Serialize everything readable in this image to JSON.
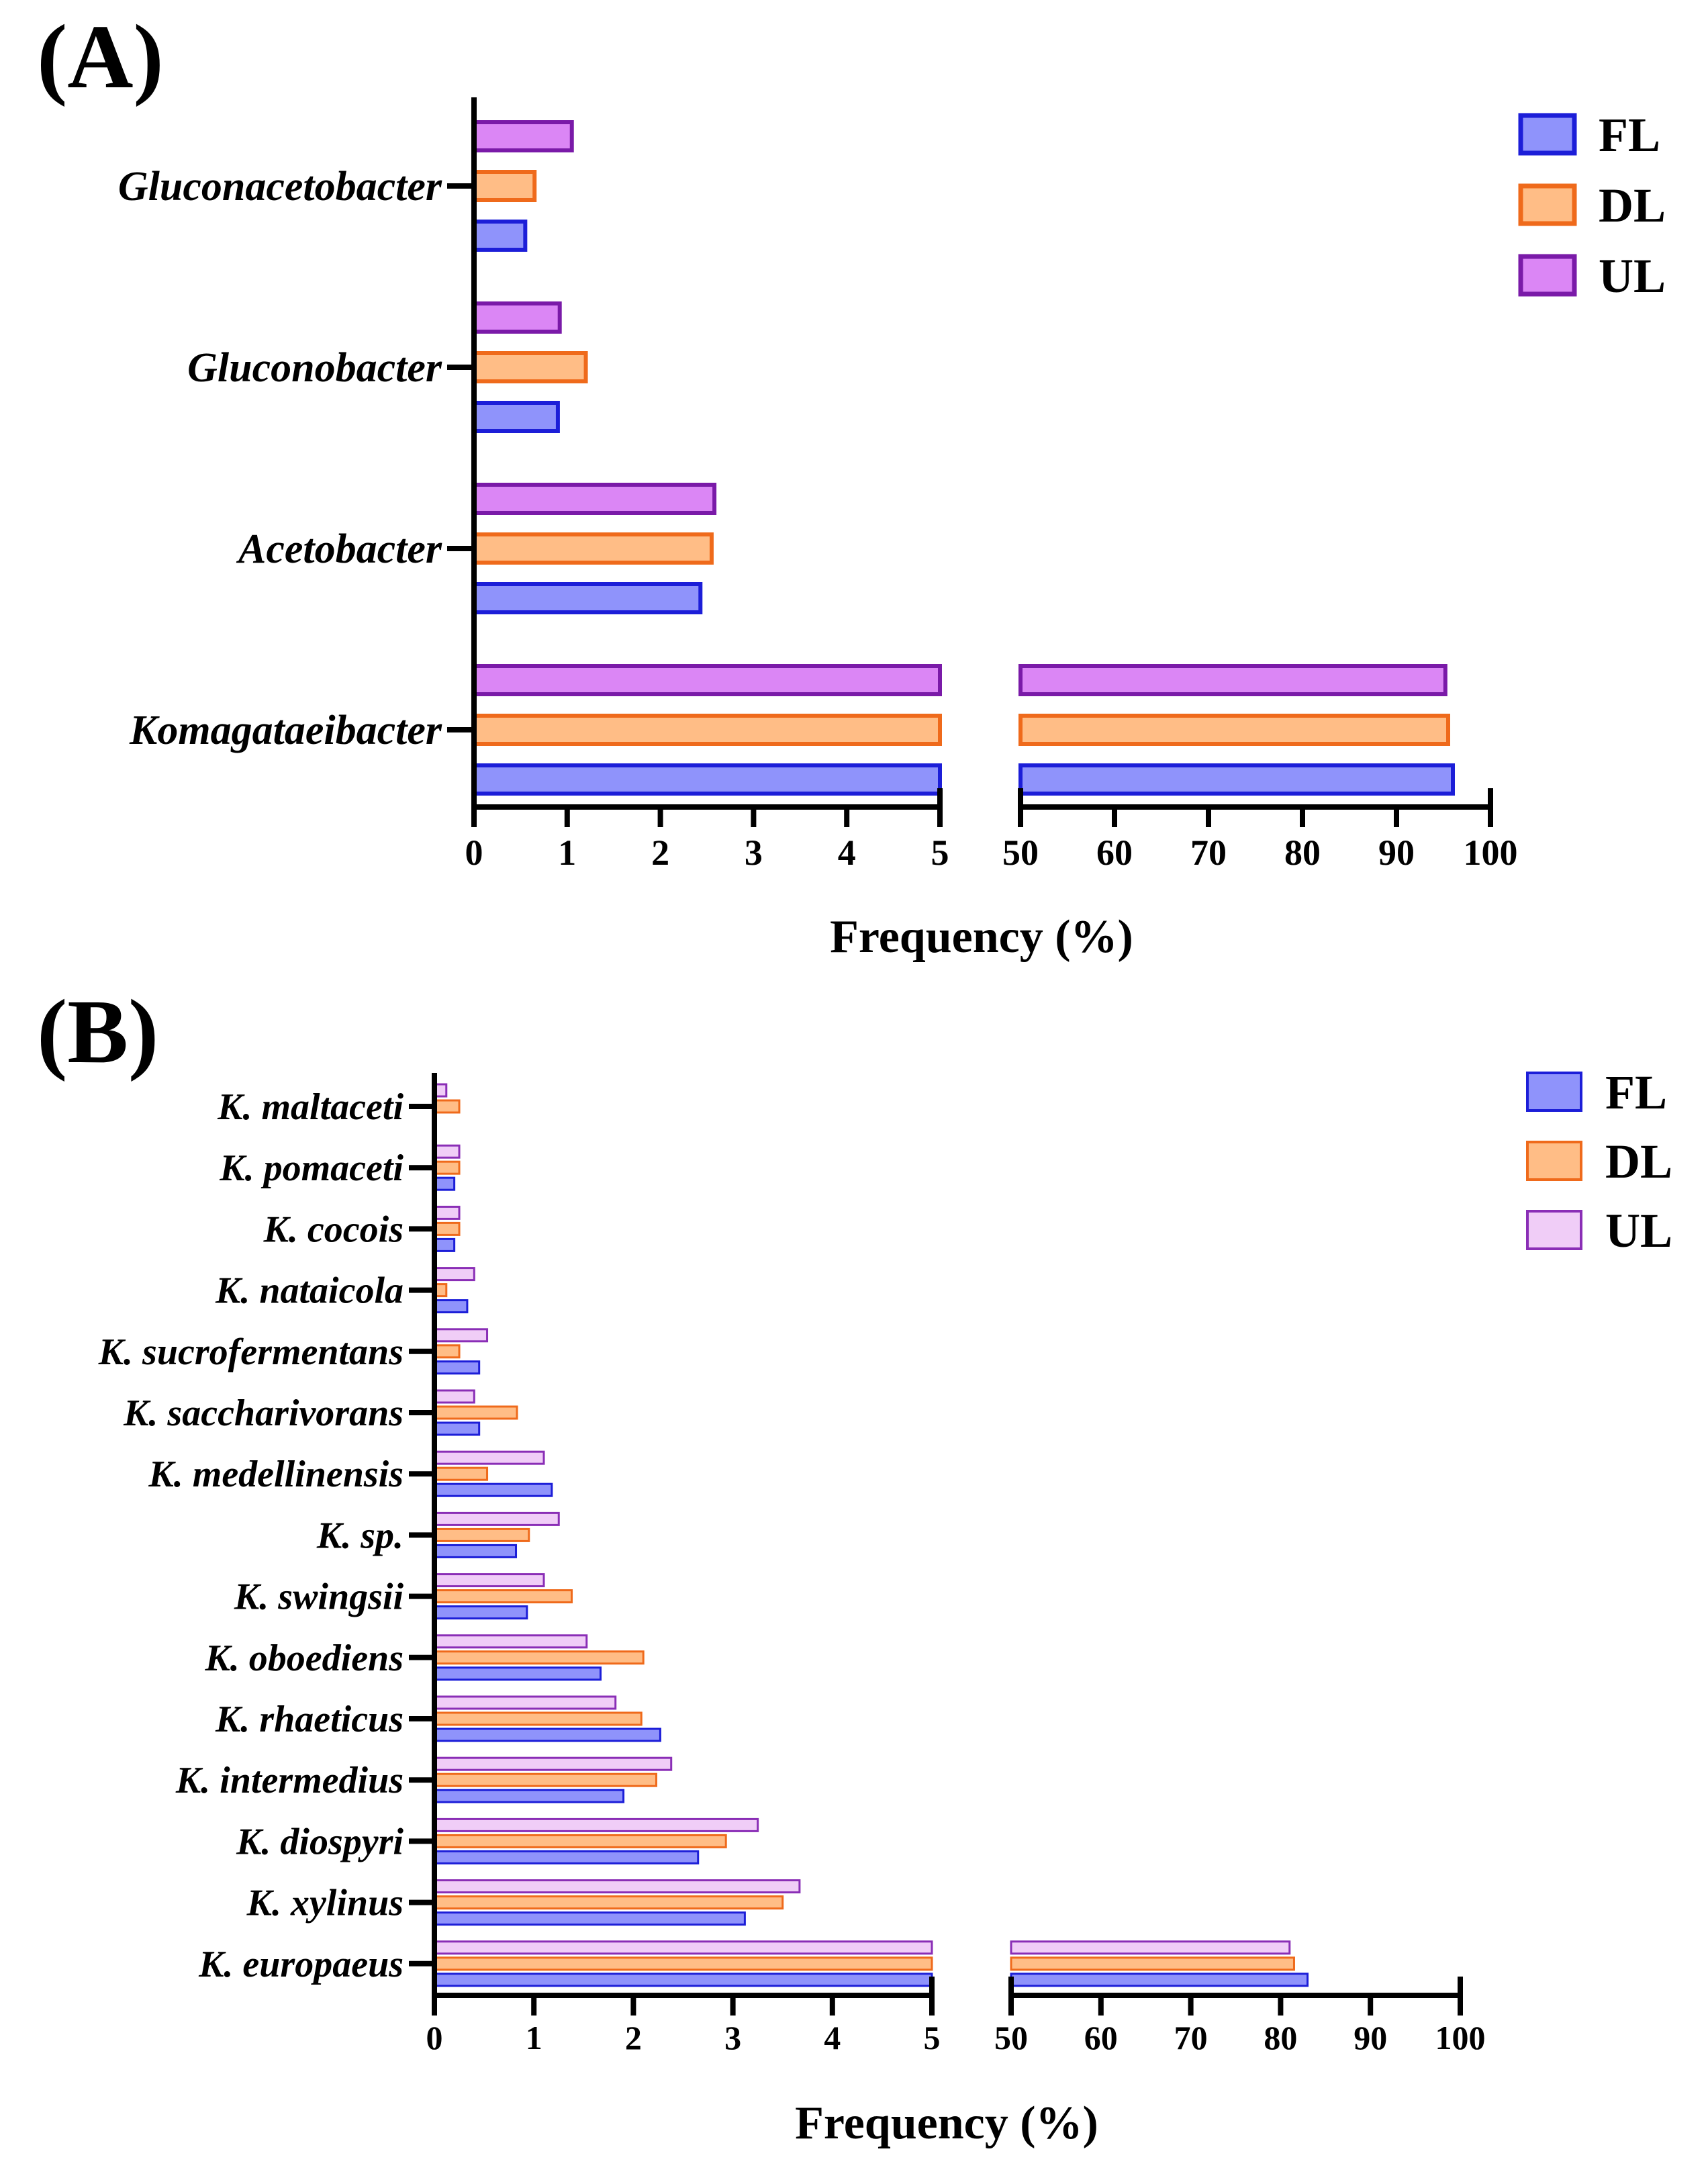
{
  "colors": {
    "FL": {
      "fill": "#8f93fb",
      "stroke": "#1c1ed8"
    },
    "DL": {
      "fill": "#ffbd86",
      "stroke": "#ef6a1b"
    },
    "UL_A": {
      "fill": "#db86f5",
      "stroke": "#7a1aa8"
    },
    "UL_B": {
      "fill": "#f0cdf7",
      "stroke": "#8a2eb6"
    }
  },
  "chart_data": [
    {
      "type": "bar",
      "orientation": "horizontal",
      "panel_label": "(A)",
      "categories": [
        "Gluconacetobacter",
        "Gluconobacter",
        "Acetobacter",
        "Komagataeibacter"
      ],
      "series": [
        {
          "name": "FL",
          "values": [
            0.55,
            0.9,
            2.43,
            96
          ]
        },
        {
          "name": "DL",
          "values": [
            0.65,
            1.2,
            2.55,
            95.5
          ]
        },
        {
          "name": "UL",
          "values": [
            1.05,
            0.92,
            2.58,
            95.2
          ]
        }
      ],
      "xlabel": "Frequency (%)",
      "x_segments": [
        {
          "range": [
            0,
            5
          ],
          "ticks": [
            "0",
            "1",
            "2",
            "3",
            "4",
            "5"
          ]
        },
        {
          "range": [
            50,
            100
          ],
          "ticks": [
            "50",
            "60",
            "70",
            "80",
            "90",
            "100"
          ]
        }
      ],
      "legend": [
        "FL",
        "DL",
        "UL"
      ],
      "legend_position": "top-right"
    },
    {
      "type": "bar",
      "orientation": "horizontal",
      "panel_label": "(B)",
      "categories": [
        "K. maltaceti",
        "K. pomaceti",
        "K. cocois",
        "K. nataicola",
        "K. sucrofermentans",
        "K. saccharivorans",
        "K. medellinensis",
        "K. sp.",
        "K. swingsii",
        "K. oboediens",
        "K. rhaeticus",
        "K. intermedius",
        "K. diospyri",
        "K. xylinus",
        "K. europaeus"
      ],
      "series": [
        {
          "name": "FL",
          "values": [
            0,
            0.2,
            0.2,
            0.33,
            0.45,
            0.45,
            1.18,
            0.82,
            0.93,
            1.67,
            2.27,
            1.9,
            2.65,
            3.12,
            83
          ]
        },
        {
          "name": "DL",
          "values": [
            0.25,
            0.25,
            0.25,
            0.12,
            0.25,
            0.83,
            0.53,
            0.95,
            1.38,
            2.1,
            2.08,
            2.23,
            2.93,
            3.5,
            81.5
          ]
        },
        {
          "name": "UL",
          "values": [
            0.12,
            0.25,
            0.25,
            0.4,
            0.53,
            0.4,
            1.1,
            1.25,
            1.1,
            1.53,
            1.82,
            2.38,
            3.25,
            3.67,
            81
          ]
        }
      ],
      "xlabel": "Frequency (%)",
      "x_segments": [
        {
          "range": [
            0,
            5
          ],
          "ticks": [
            "0",
            "1",
            "2",
            "3",
            "4",
            "5"
          ]
        },
        {
          "range": [
            50,
            100
          ],
          "ticks": [
            "50",
            "60",
            "70",
            "80",
            "90",
            "100"
          ]
        }
      ],
      "legend": [
        "FL",
        "DL",
        "UL"
      ],
      "legend_position": "top-right"
    }
  ]
}
